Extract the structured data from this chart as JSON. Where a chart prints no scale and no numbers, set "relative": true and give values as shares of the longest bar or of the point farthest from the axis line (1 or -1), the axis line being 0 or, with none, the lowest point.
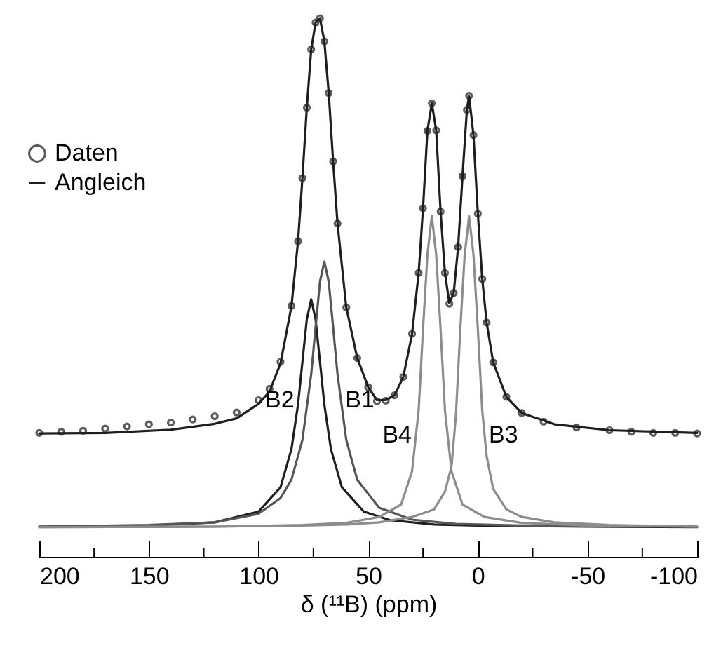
{
  "chart_data": {
    "type": "line",
    "relative": true,
    "xlabel": "δ (¹¹B) (ppm)",
    "xlim": [
      200,
      -100
    ],
    "xticks": [
      200,
      {
        "value": 175,
        "label": null
      },
      150,
      {
        "value": 125,
        "label": null
      },
      100,
      {
        "value": 75,
        "label": null
      },
      50,
      {
        "value": 25,
        "label": null
      },
      0,
      {
        "value": -25,
        "label": null
      },
      -50,
      {
        "value": -75,
        "label": null
      },
      -100
    ],
    "legend": "top left",
    "series": [
      {
        "name": "Daten",
        "type": "scatter",
        "color": "#5a5a5a",
        "x": [
          200,
          190,
          180,
          170,
          160,
          150,
          140,
          130,
          120,
          110,
          100,
          95,
          90,
          85,
          82,
          80,
          78,
          76,
          74,
          72,
          70,
          68,
          66,
          64,
          60,
          55,
          50,
          46,
          42,
          38,
          34,
          30,
          27,
          25,
          23,
          21,
          19,
          17,
          15,
          13,
          11,
          9,
          7,
          5,
          4,
          2,
          0,
          -2,
          -4,
          -7,
          -13,
          -20,
          -30,
          -45,
          -60,
          -70,
          -80,
          -90,
          -100
        ],
        "values": [
          0.23,
          0.232,
          0.234,
          0.238,
          0.242,
          0.246,
          0.249,
          0.255,
          0.261,
          0.268,
          0.291,
          0.312,
          0.362,
          0.466,
          0.586,
          0.703,
          0.834,
          0.942,
          0.992,
          1.0,
          0.957,
          0.861,
          0.734,
          0.619,
          0.463,
          0.369,
          0.315,
          0.289,
          0.29,
          0.3,
          0.334,
          0.414,
          0.527,
          0.647,
          0.791,
          0.842,
          0.792,
          0.641,
          0.527,
          0.47,
          0.49,
          0.575,
          0.707,
          0.83,
          0.856,
          0.783,
          0.637,
          0.516,
          0.435,
          0.361,
          0.297,
          0.267,
          0.251,
          0.24,
          0.235,
          0.232,
          0.23,
          0.23,
          0.229
        ]
      },
      {
        "name": "Angleich",
        "color": "#1e1e1e",
        "x": [
          200,
          170,
          140,
          120,
          110,
          100,
          95,
          90,
          85,
          82,
          80,
          78,
          76,
          74,
          72,
          70,
          68,
          66,
          64,
          60,
          55,
          50,
          46,
          42,
          38,
          34,
          30,
          27,
          25,
          23,
          21,
          19,
          17,
          15,
          13,
          11,
          9,
          7,
          5,
          4,
          2,
          0,
          -2,
          -4,
          -7,
          -13,
          -20,
          -35,
          -60,
          -100
        ],
        "values": [
          0.229,
          0.23,
          0.236,
          0.247,
          0.257,
          0.284,
          0.307,
          0.359,
          0.465,
          0.586,
          0.703,
          0.834,
          0.942,
          0.992,
          1.0,
          0.957,
          0.861,
          0.734,
          0.619,
          0.463,
          0.369,
          0.315,
          0.291,
          0.291,
          0.3,
          0.334,
          0.414,
          0.527,
          0.647,
          0.791,
          0.842,
          0.792,
          0.641,
          0.527,
          0.471,
          0.49,
          0.575,
          0.707,
          0.83,
          0.856,
          0.783,
          0.637,
          0.516,
          0.435,
          0.361,
          0.297,
          0.267,
          0.246,
          0.235,
          0.23
        ]
      },
      {
        "color": "#1e1e1e",
        "x": [
          200,
          150,
          120,
          100,
          90,
          85,
          82,
          80,
          78,
          76,
          74,
          72,
          70,
          67,
          62,
          52,
          40,
          20,
          0,
          -50,
          -100
        ],
        "values": [
          0.056,
          0.058,
          0.064,
          0.084,
          0.129,
          0.2,
          0.283,
          0.362,
          0.441,
          0.478,
          0.441,
          0.362,
          0.283,
          0.2,
          0.129,
          0.084,
          0.068,
          0.06,
          0.058,
          0.056,
          0.055
        ]
      },
      {
        "color": "#555555",
        "x": [
          200,
          150,
          120,
          100,
          90,
          85,
          80,
          76,
          74,
          72,
          70,
          68,
          66,
          64,
          60,
          55,
          45,
          30,
          10,
          -30,
          -100
        ],
        "values": [
          0.056,
          0.059,
          0.064,
          0.08,
          0.109,
          0.143,
          0.217,
          0.339,
          0.426,
          0.511,
          0.548,
          0.511,
          0.426,
          0.339,
          0.217,
          0.143,
          0.091,
          0.069,
          0.061,
          0.057,
          0.056
        ]
      },
      {
        "color": "#8c8c8c",
        "x": [
          200,
          120,
          80,
          60,
          45,
          35,
          30,
          27,
          25,
          23,
          21,
          19,
          17,
          15,
          12,
          7,
          -3,
          -20,
          -50,
          -100
        ],
        "values": [
          0.055,
          0.056,
          0.059,
          0.063,
          0.074,
          0.097,
          0.159,
          0.272,
          0.423,
          0.561,
          0.633,
          0.561,
          0.423,
          0.272,
          0.159,
          0.097,
          0.074,
          0.063,
          0.058,
          0.056
        ]
      },
      {
        "color": "#8c8c8c",
        "x": [
          200,
          120,
          80,
          60,
          45,
          30,
          20,
          15,
          12,
          10,
          8,
          6,
          4,
          2,
          0,
          -2,
          -4,
          -7,
          -13,
          -20,
          -35,
          -60,
          -100
        ],
        "values": [
          0.055,
          0.056,
          0.058,
          0.06,
          0.064,
          0.074,
          0.088,
          0.121,
          0.168,
          0.263,
          0.423,
          0.561,
          0.633,
          0.561,
          0.423,
          0.272,
          0.187,
          0.126,
          0.088,
          0.074,
          0.064,
          0.059,
          0.056
        ]
      }
    ],
    "annotations": [
      "B2",
      "B1",
      "B4",
      "B3"
    ]
  }
}
